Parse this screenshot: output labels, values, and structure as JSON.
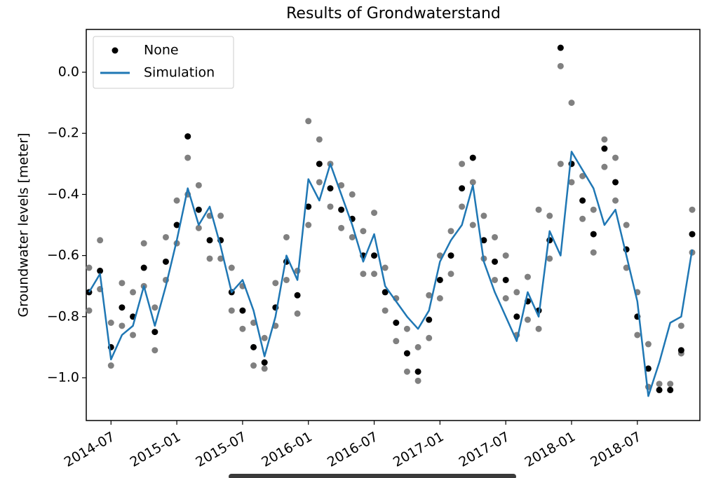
{
  "chart_data": {
    "type": "scatter",
    "title": "Results of Grondwaterstand",
    "y_label": "Groundwater levels [meter]",
    "x": [
      "2014-05",
      "2014-06",
      "2014-07",
      "2014-08",
      "2014-09",
      "2014-10",
      "2014-11",
      "2014-12",
      "2015-01",
      "2015-02",
      "2015-03",
      "2015-04",
      "2015-05",
      "2015-06",
      "2015-07",
      "2015-08",
      "2015-09",
      "2015-10",
      "2015-11",
      "2015-12",
      "2016-01",
      "2016-02",
      "2016-03",
      "2016-04",
      "2016-05",
      "2016-06",
      "2016-07",
      "2016-08",
      "2016-09",
      "2016-10",
      "2016-11",
      "2016-12",
      "2017-01",
      "2017-02",
      "2017-03",
      "2017-04",
      "2017-05",
      "2017-06",
      "2017-07",
      "2017-08",
      "2017-09",
      "2017-10",
      "2017-11",
      "2017-12",
      "2018-01",
      "2018-02",
      "2018-03",
      "2018-04",
      "2018-05",
      "2018-06",
      "2018-07",
      "2018-08",
      "2018-09",
      "2018-10",
      "2018-11",
      "2018-12"
    ],
    "series": [
      {
        "color": "#808080",
        "type": "scatter",
        "x": [
          "2014-05",
          "2014-05",
          "2014-06",
          "2014-06",
          "2014-07",
          "2014-07",
          "2014-08",
          "2014-08",
          "2014-09",
          "2014-09",
          "2014-10",
          "2014-10",
          "2014-11",
          "2014-11",
          "2014-12",
          "2014-12",
          "2015-01",
          "2015-01",
          "2015-02",
          "2015-02",
          "2015-03",
          "2015-03",
          "2015-04",
          "2015-04",
          "2015-05",
          "2015-05",
          "2015-06",
          "2015-06",
          "2015-07",
          "2015-07",
          "2015-08",
          "2015-08",
          "2015-09",
          "2015-09",
          "2015-10",
          "2015-10",
          "2015-11",
          "2015-11",
          "2015-12",
          "2015-12",
          "2016-01",
          "2016-01",
          "2016-02",
          "2016-02",
          "2016-03",
          "2016-03",
          "2016-04",
          "2016-04",
          "2016-05",
          "2016-05",
          "2016-06",
          "2016-06",
          "2016-07",
          "2016-07",
          "2016-08",
          "2016-08",
          "2016-09",
          "2016-09",
          "2016-10",
          "2016-10",
          "2016-11",
          "2016-11",
          "2016-12",
          "2016-12",
          "2017-01",
          "2017-01",
          "2017-02",
          "2017-02",
          "2017-03",
          "2017-03",
          "2017-04",
          "2017-04",
          "2017-05",
          "2017-05",
          "2017-06",
          "2017-06",
          "2017-07",
          "2017-07",
          "2017-08",
          "2017-08",
          "2017-09",
          "2017-09",
          "2017-10",
          "2017-10",
          "2017-11",
          "2017-11",
          "2017-12",
          "2017-12",
          "2018-01",
          "2018-01",
          "2018-02",
          "2018-02",
          "2018-03",
          "2018-03",
          "2018-04",
          "2018-04",
          "2018-05",
          "2018-05",
          "2018-06",
          "2018-06",
          "2018-07",
          "2018-07",
          "2018-08",
          "2018-08",
          "2018-09",
          "2018-09",
          "2018-10",
          "2018-10",
          "2018-11",
          "2018-11",
          "2018-12",
          "2018-12"
        ],
        "values": [
          -0.64,
          -0.78,
          -0.55,
          -0.71,
          -0.82,
          -0.96,
          -0.69,
          -0.83,
          -0.72,
          -0.86,
          -0.56,
          -0.7,
          -0.77,
          -0.91,
          -0.54,
          -0.68,
          -0.42,
          -0.56,
          -0.28,
          -0.4,
          -0.37,
          -0.51,
          -0.47,
          -0.61,
          -0.47,
          -0.61,
          -0.64,
          -0.78,
          -0.7,
          -0.84,
          -0.82,
          -0.96,
          -0.87,
          -0.97,
          -0.69,
          -0.83,
          -0.54,
          -0.68,
          -0.65,
          -0.79,
          -0.16,
          -0.5,
          -0.22,
          -0.36,
          -0.3,
          -0.44,
          -0.37,
          -0.51,
          -0.4,
          -0.54,
          -0.52,
          -0.66,
          -0.46,
          -0.66,
          -0.64,
          -0.78,
          -0.74,
          -0.88,
          -0.84,
          -0.98,
          -0.9,
          -1.01,
          -0.73,
          -0.87,
          -0.6,
          -0.74,
          -0.52,
          -0.66,
          -0.3,
          -0.44,
          -0.36,
          -0.5,
          -0.47,
          -0.61,
          -0.54,
          -0.68,
          -0.6,
          -0.74,
          -0.72,
          -0.86,
          -0.67,
          -0.81,
          -0.45,
          -0.84,
          -0.47,
          -0.61,
          0.02,
          -0.3,
          -0.1,
          -0.36,
          -0.34,
          -0.48,
          -0.45,
          -0.59,
          -0.22,
          -0.31,
          -0.28,
          -0.42,
          -0.5,
          -0.64,
          -0.72,
          -0.86,
          -0.89,
          -1.03,
          -1.02,
          -1.04,
          -1.02,
          -1.04,
          -0.83,
          -0.92,
          -0.45,
          -0.59
        ]
      },
      {
        "name": "None",
        "color": "#000000",
        "type": "scatter",
        "values": [
          -0.72,
          -0.65,
          -0.9,
          -0.77,
          -0.8,
          -0.64,
          -0.85,
          -0.62,
          -0.5,
          -0.21,
          -0.45,
          -0.55,
          -0.55,
          -0.72,
          -0.78,
          -0.9,
          -0.95,
          -0.77,
          -0.62,
          -0.73,
          -0.44,
          -0.3,
          -0.38,
          -0.45,
          -0.48,
          -0.6,
          -0.6,
          -0.72,
          -0.82,
          -0.92,
          -0.98,
          -0.81,
          -0.68,
          -0.6,
          -0.38,
          -0.28,
          -0.55,
          -0.62,
          -0.68,
          -0.8,
          -0.75,
          -0.78,
          -0.55,
          0.08,
          -0.3,
          -0.42,
          -0.53,
          -0.25,
          -0.36,
          -0.58,
          -0.8,
          -0.97,
          -1.04,
          -1.04,
          -0.91,
          -0.53
        ]
      },
      {
        "name": "Simulation",
        "color": "#1f77b4",
        "type": "line",
        "values": [
          -0.72,
          -0.66,
          -0.94,
          -0.86,
          -0.83,
          -0.7,
          -0.83,
          -0.7,
          -0.55,
          -0.38,
          -0.5,
          -0.44,
          -0.57,
          -0.72,
          -0.68,
          -0.78,
          -0.93,
          -0.8,
          -0.6,
          -0.68,
          -0.35,
          -0.42,
          -0.3,
          -0.4,
          -0.5,
          -0.62,
          -0.53,
          -0.7,
          -0.75,
          -0.8,
          -0.84,
          -0.78,
          -0.62,
          -0.55,
          -0.5,
          -0.37,
          -0.62,
          -0.72,
          -0.8,
          -0.88,
          -0.72,
          -0.8,
          -0.52,
          -0.6,
          -0.26,
          -0.32,
          -0.38,
          -0.5,
          -0.45,
          -0.6,
          -0.75,
          -1.06,
          -0.95,
          -0.82,
          -0.8,
          -0.58
        ]
      }
    ],
    "xlim": [
      "2014-05",
      "2018-12"
    ],
    "xticks": [
      "2014-07",
      "2015-01",
      "2015-07",
      "2016-01",
      "2016-07",
      "2017-01",
      "2017-07",
      "2018-01",
      "2018-07"
    ],
    "ylim": [
      -1.14,
      0.14
    ],
    "yticks": [
      {
        "value": -1,
        "label": "−1.0"
      },
      {
        "value": -0.8,
        "label": "−0.8"
      },
      {
        "value": -0.6,
        "label": "−0.6"
      },
      {
        "value": -0.4,
        "label": "−0.4"
      },
      {
        "value": -0.2,
        "label": "−0.2"
      },
      {
        "value": 0,
        "label": "0.0"
      }
    ],
    "legend": "upper left"
  }
}
